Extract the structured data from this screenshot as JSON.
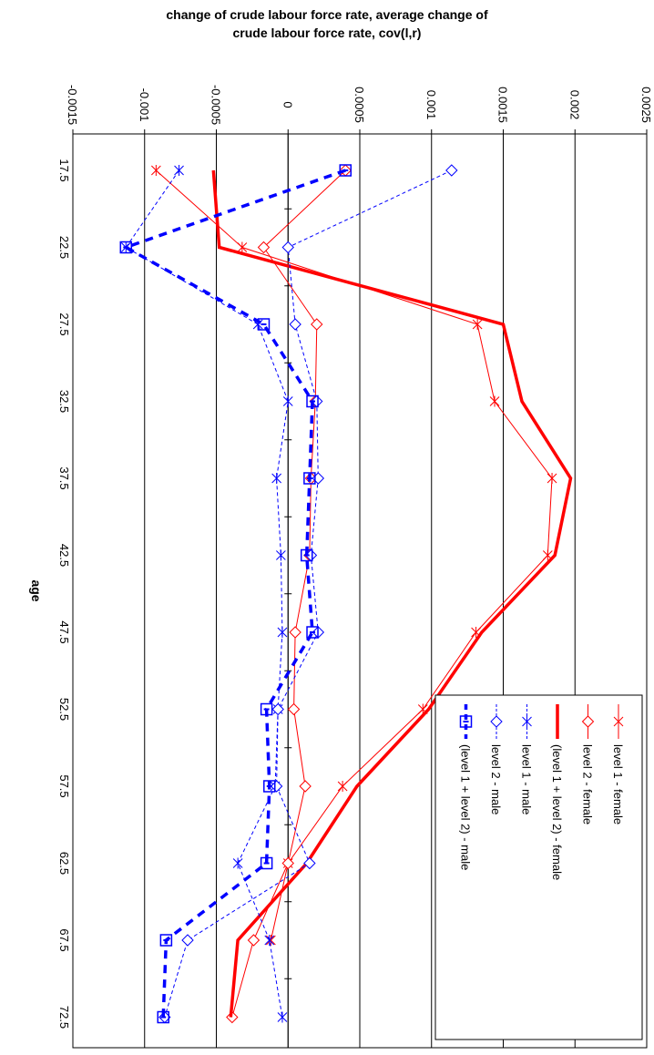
{
  "chart_data": {
    "type": "line",
    "title_line1": "change of crude labour force rate, average change of",
    "title_line2": "crude labour force rate, cov(l,r)",
    "xlabel": "age",
    "ylabel": "",
    "categories": [
      "17.5",
      "22.5",
      "27.5",
      "32.5",
      "37.5",
      "42.5",
      "47.5",
      "52.5",
      "57.5",
      "62.5",
      "67.5",
      "72.5"
    ],
    "ylim": [
      -0.0015,
      0.0025
    ],
    "yticks": [
      "-0.0015",
      "-0.001",
      "-0.0005",
      "0",
      "0.0005",
      "0.001",
      "0.0015",
      "0.002",
      "0.0025"
    ],
    "ytick_values": [
      -0.0015,
      -0.001,
      -0.0005,
      0,
      0.0005,
      0.001,
      0.0015,
      0.002,
      0.0025
    ],
    "grid": true,
    "legend_position": "bottom-right",
    "series": [
      {
        "name": "level 1 - female",
        "color": "#ff0000",
        "line": "solid-thin",
        "marker": "asterisk",
        "values": [
          -0.00092,
          -0.00032,
          0.00132,
          0.00144,
          0.00184,
          0.00181,
          0.00131,
          0.00094,
          0.00038,
          0.0,
          -0.00012,
          null
        ]
      },
      {
        "name": "level 2 - female",
        "color": "#ff0000",
        "line": "solid-thin",
        "marker": "diamond",
        "values": [
          0.0004,
          -0.00017,
          0.0002,
          0.00019,
          0.00016,
          0.00015,
          5e-05,
          4e-05,
          0.00012,
          0.0,
          -0.00024,
          -0.00039
        ]
      },
      {
        "name": "(level 1 + level 2) - female",
        "color": "#ff0000",
        "line": "solid-thick",
        "marker": "none",
        "values": [
          -0.00052,
          -0.00048,
          0.0015,
          0.00163,
          0.00197,
          0.00186,
          0.00135,
          0.00098,
          0.00048,
          0.00013,
          -0.00035,
          -0.0004
        ]
      },
      {
        "name": "level 1 - male",
        "color": "#0000ff",
        "line": "dashed-thin",
        "marker": "asterisk",
        "values": [
          -0.00076,
          -0.00113,
          -0.00021,
          0.0,
          -8e-05,
          -5e-05,
          -4e-05,
          -7e-05,
          -9e-05,
          -0.00035,
          -0.00013,
          -4e-05
        ]
      },
      {
        "name": "level 2 - male",
        "color": "#0000ff",
        "line": "dashed-thin",
        "marker": "diamond",
        "values": [
          0.00114,
          0.0,
          5e-05,
          0.0002,
          0.00021,
          0.00016,
          0.00021,
          -7e-05,
          -8e-05,
          0.00015,
          -0.0007,
          -0.00086
        ]
      },
      {
        "name": "(level 1 + level 2) - male",
        "color": "#0000ff",
        "line": "dashed-thick",
        "marker": "square",
        "values": [
          0.0004,
          -0.00113,
          -0.00017,
          0.00017,
          0.00015,
          0.00013,
          0.00017,
          -0.00015,
          -0.00013,
          -0.00015,
          -0.00085,
          -0.00087
        ]
      }
    ]
  }
}
